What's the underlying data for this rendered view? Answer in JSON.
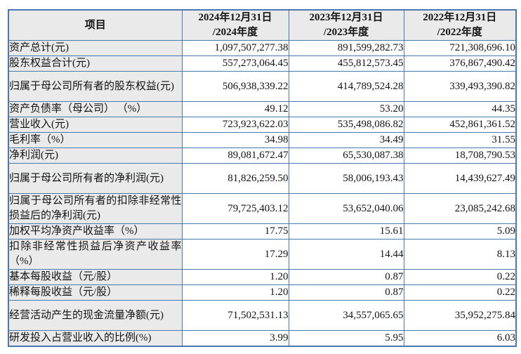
{
  "colors": {
    "table_border": "#4a77ad",
    "shaded_cell_background": "#eaeaea",
    "text": "#141414",
    "page_background": "#ffffff"
  },
  "table": {
    "header": {
      "item": "项目",
      "cols": [
        {
          "line1": "2024年12月31日",
          "line2": "/2024年度"
        },
        {
          "line1": "2023年12月31日",
          "line2": "/2023年度"
        },
        {
          "line1": "2022年12月31日",
          "line2": "/2022年度"
        }
      ]
    },
    "rows": [
      {
        "label": "资产总计(元)",
        "values": [
          "1,097,507,277.38",
          "891,599,282.73",
          "721,308,696.10"
        ]
      },
      {
        "label": "股东权益合计(元)",
        "values": [
          "557,273,064.45",
          "455,812,573.45",
          "376,867,490.42"
        ]
      },
      {
        "label": "归属于母公司所有者的股东权益(元)",
        "values": [
          "506,938,339.22",
          "414,789,524.28",
          "339,493,390.82"
        ]
      },
      {
        "label": "资产负债率（母公司） （%）",
        "values": [
          "49.12",
          "53.20",
          "44.35"
        ]
      },
      {
        "label": "营业收入(元)",
        "values": [
          "723,923,622.03",
          "535,498,086.82",
          "452,861,361.52"
        ]
      },
      {
        "label": "毛利率（%）",
        "values": [
          "34.98",
          "34.49",
          "31.55"
        ]
      },
      {
        "label": "净利润(元)",
        "values": [
          "89,081,672.47",
          "65,530,087.38",
          "18,708,790.53"
        ]
      },
      {
        "label": "归属于母公司所有者的净利润(元)",
        "values": [
          "81,826,259.50",
          "58,006,193.43",
          "14,439,627.49"
        ]
      },
      {
        "label": "归属于母公司所有者的扣除非经常性损益后的净利润(元)",
        "values": [
          "79,725,403.12",
          "53,652,040.06",
          "23,085,242.68"
        ]
      },
      {
        "label": "加权平均净资产收益率（%）",
        "values": [
          "17.75",
          "15.61",
          "5.09"
        ]
      },
      {
        "label": "扣除非经常性损益后净资产收益率（%）",
        "values": [
          "17.29",
          "14.44",
          "8.13"
        ]
      },
      {
        "label": "基本每股收益（元/股）",
        "values": [
          "1.20",
          "0.87",
          "0.22"
        ]
      },
      {
        "label": "稀释每股收益（元/股）",
        "values": [
          "1.20",
          "0.87",
          "0.22"
        ]
      },
      {
        "label": "经营活动产生的现金流量净额(元)",
        "values": [
          "71,502,531.13",
          "34,557,065.65",
          "35,952,275.84"
        ]
      },
      {
        "label": "研发投入占营业收入的比例(%)",
        "values": [
          "3.99",
          "5.95",
          "6.03"
        ]
      }
    ]
  }
}
